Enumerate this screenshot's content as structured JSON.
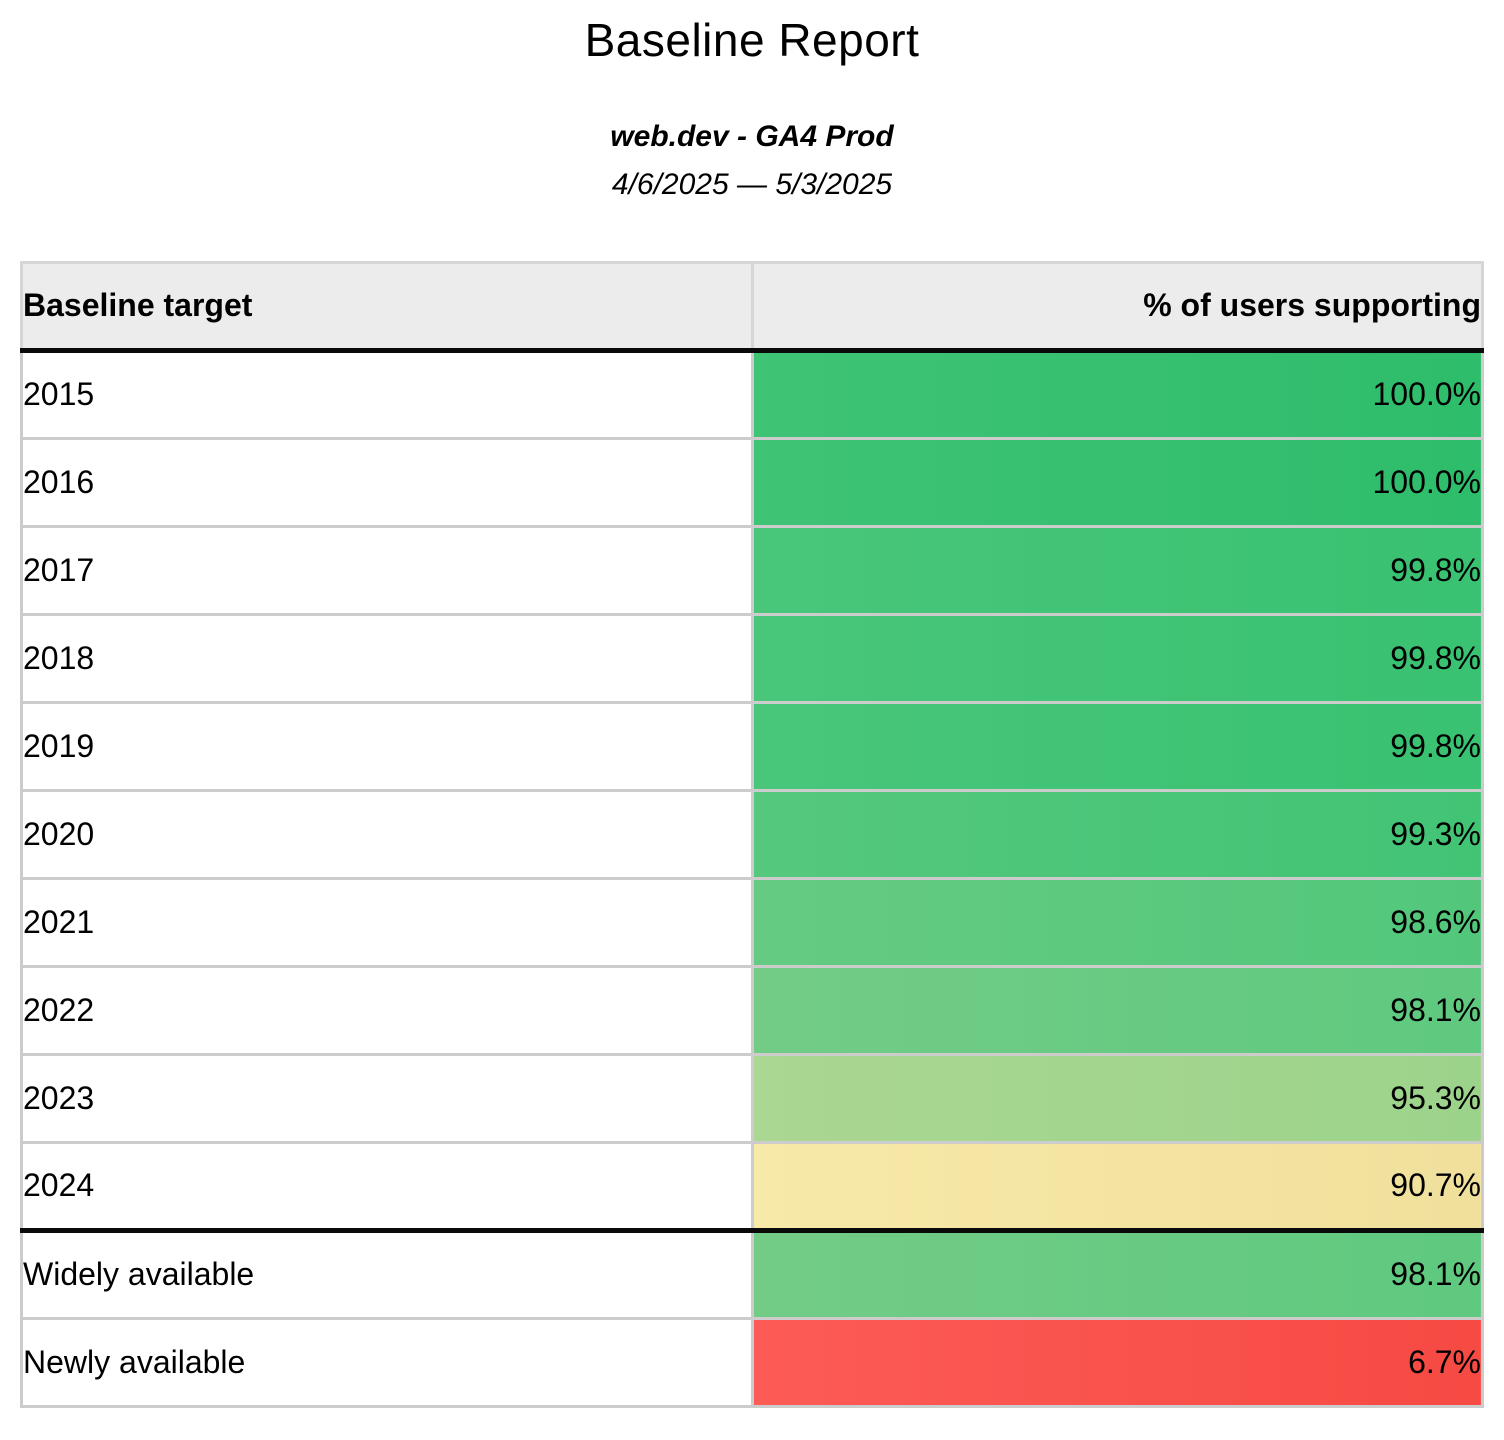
{
  "report": {
    "title": "Baseline Report",
    "property_name": "web.dev - GA4 Prod",
    "date_range": "4/6/2025 — 5/3/2025"
  },
  "table": {
    "columns": {
      "target": "Baseline target",
      "value": "% of users supporting"
    },
    "rows": [
      {
        "target": "2015",
        "value": "100.0%",
        "section_start": false,
        "colors": [
          "#3fc375",
          "#2ebd6b"
        ]
      },
      {
        "target": "2016",
        "value": "100.0%",
        "section_start": false,
        "colors": [
          "#3fc375",
          "#2ebd6b"
        ]
      },
      {
        "target": "2017",
        "value": "99.8%",
        "section_start": false,
        "colors": [
          "#49c67a",
          "#38c271"
        ]
      },
      {
        "target": "2018",
        "value": "99.8%",
        "section_start": false,
        "colors": [
          "#49c67a",
          "#38c271"
        ]
      },
      {
        "target": "2019",
        "value": "99.8%",
        "section_start": false,
        "colors": [
          "#49c67a",
          "#38c271"
        ]
      },
      {
        "target": "2020",
        "value": "99.3%",
        "section_start": false,
        "colors": [
          "#55c87d",
          "#42c475"
        ]
      },
      {
        "target": "2021",
        "value": "98.6%",
        "section_start": false,
        "colors": [
          "#65cb82",
          "#52c77b"
        ]
      },
      {
        "target": "2022",
        "value": "98.1%",
        "section_start": false,
        "colors": [
          "#73cc86",
          "#5fc97f"
        ]
      },
      {
        "target": "2023",
        "value": "95.3%",
        "section_start": false,
        "colors": [
          "#aad792",
          "#9cd38b"
        ]
      },
      {
        "target": "2024",
        "value": "90.7%",
        "section_start": false,
        "colors": [
          "#f7e9a8",
          "#f0e09c"
        ]
      },
      {
        "target": "Widely available",
        "value": "98.1%",
        "section_start": true,
        "colors": [
          "#73cc86",
          "#5fc97f"
        ]
      },
      {
        "target": "Newly available",
        "value": "6.7%",
        "section_start": false,
        "colors": [
          "#fd5b56",
          "#f64a43"
        ]
      }
    ]
  },
  "colors": {
    "header_background": "#ececec",
    "grid_border": "#cccccc",
    "section_divider": "#0a0a0a",
    "green_high": "#38c172",
    "green_pale": "#a3d48c",
    "yellow_warn": "#f5e6a3",
    "red_low": "#f95b55"
  },
  "chart_data": {
    "type": "table",
    "title": "Baseline Report",
    "subtitle": "web.dev - GA4 Prod",
    "date_range": "4/6/2025 — 5/3/2025",
    "columns": [
      "Baseline target",
      "% of users supporting"
    ],
    "categories": [
      "2015",
      "2016",
      "2017",
      "2018",
      "2019",
      "2020",
      "2021",
      "2022",
      "2023",
      "2024",
      "Widely available",
      "Newly available"
    ],
    "values": [
      100.0,
      100.0,
      99.8,
      99.8,
      99.8,
      99.3,
      98.6,
      98.1,
      95.3,
      90.7,
      98.1,
      6.7
    ]
  }
}
